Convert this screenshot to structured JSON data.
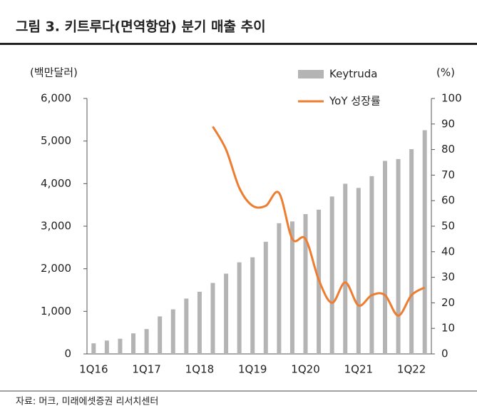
{
  "title": "그림 3. 키트루다(면역항암) 분기 매출 추이",
  "source": "자료: 머크, 미래에셋증권 리서치센터",
  "chart_data": {
    "type": "bar-line",
    "y_label": "(백만달러)",
    "y2_label": "(%)",
    "categories": [
      "1Q16",
      null,
      null,
      null,
      "1Q17",
      null,
      null,
      null,
      "1Q18",
      null,
      null,
      null,
      "1Q19",
      null,
      null,
      null,
      "1Q20",
      null,
      null,
      null,
      "1Q21",
      null,
      null,
      null,
      "1Q22",
      null
    ],
    "series": [
      {
        "name": "Keytruda",
        "type": "bar",
        "color": "#b4b4b4",
        "values": [
          249,
          314,
          356,
          483,
          584,
          881,
          1047,
          1300,
          1460,
          1667,
          1885,
          2151,
          2269,
          2634,
          3070,
          3112,
          3284,
          3388,
          3698,
          3997,
          3899,
          4176,
          4534,
          4577,
          4809,
          5254
        ]
      },
      {
        "name": "YoY 성장률",
        "type": "line",
        "axis": "y2",
        "color": "#ed7d31",
        "values": [
          null,
          null,
          null,
          null,
          null,
          null,
          null,
          null,
          null,
          89,
          80,
          65,
          58,
          58,
          63,
          45,
          45,
          29,
          20,
          28,
          19,
          23,
          23,
          15,
          23,
          26
        ]
      }
    ],
    "ylim": [
      0,
      6000
    ],
    "yticks": [
      0,
      {
        "value": 1000,
        "label": "1,000"
      },
      {
        "value": 2000,
        "label": "2,000"
      },
      {
        "value": 3000,
        "label": "3,000"
      },
      {
        "value": 4000,
        "label": "4,000"
      },
      {
        "value": 5000,
        "label": "5,000"
      },
      {
        "value": 6000,
        "label": "6,000"
      }
    ],
    "y2lim": [
      0,
      100
    ],
    "y2ticks": [
      0,
      10,
      20,
      30,
      40,
      50,
      60,
      70,
      80,
      90,
      100
    ],
    "grid": false,
    "legend": "top-right"
  }
}
